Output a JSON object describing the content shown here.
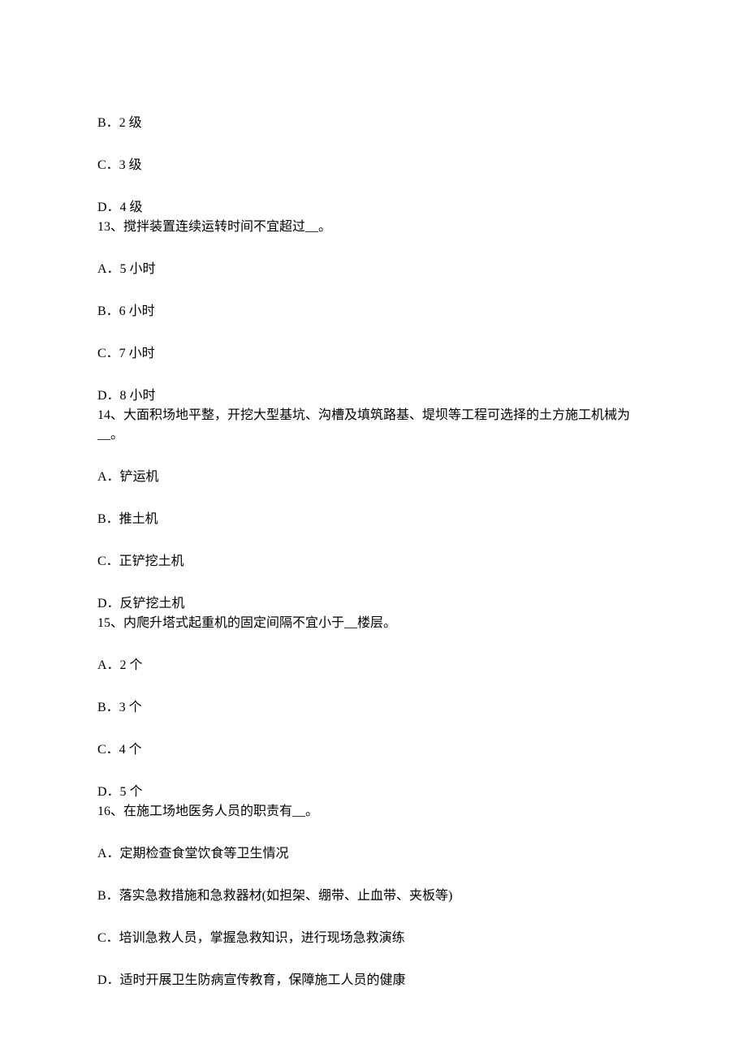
{
  "q12": {
    "optionB": "B．2 级",
    "optionC": "C．3 级",
    "optionD": "D．4 级"
  },
  "q13": {
    "question": "13、搅拌装置连续运转时间不宜超过__。",
    "optionA": "A．5 小时",
    "optionB": "B．6 小时",
    "optionC": "C．7 小时",
    "optionD": "D．8 小时"
  },
  "q14": {
    "question": "14、大面积场地平整，开挖大型基坑、沟槽及填筑路基、堤坝等工程可选择的土方施工机械为__。",
    "optionA": "A．铲运机",
    "optionB": "B．推土机",
    "optionC": "C．正铲挖土机",
    "optionD": "D．反铲挖土机"
  },
  "q15": {
    "question": "15、内爬升塔式起重机的固定间隔不宜小于__楼层。",
    "optionA": "A．2 个",
    "optionB": "B．3 个",
    "optionC": "C．4 个",
    "optionD": "D．5 个"
  },
  "q16": {
    "question": "16、在施工场地医务人员的职责有__。",
    "optionA": "A．定期检查食堂饮食等卫生情况",
    "optionB": "B．落实急救措施和急救器材(如担架、绷带、止血带、夹板等)",
    "optionC": "C．培训急救人员，掌握急救知识，进行现场急救演练",
    "optionD": "D．适时开展卫生防病宣传教育，保障施工人员的健康"
  }
}
